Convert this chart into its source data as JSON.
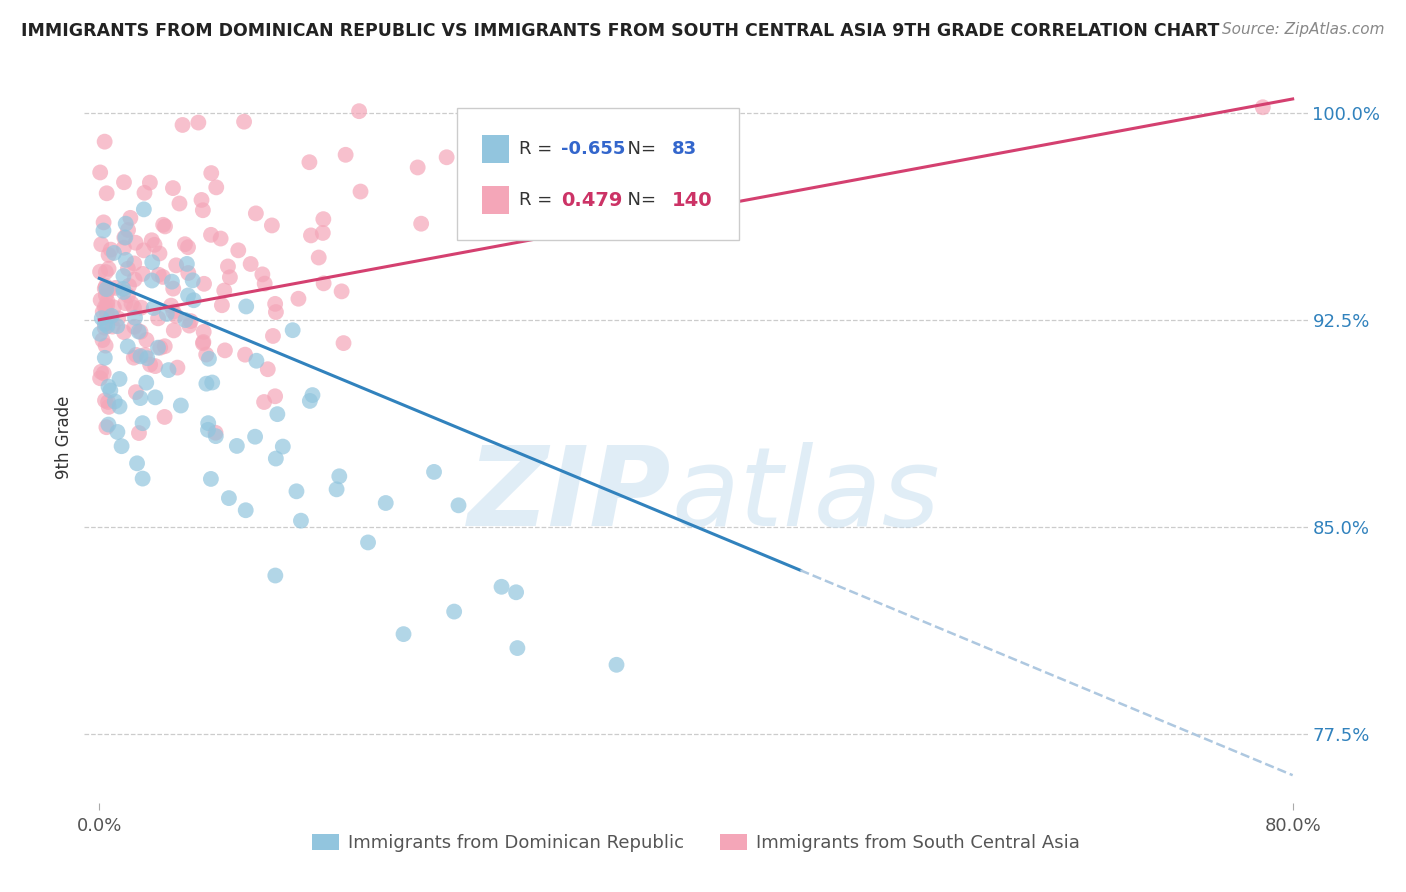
{
  "title": "IMMIGRANTS FROM DOMINICAN REPUBLIC VS IMMIGRANTS FROM SOUTH CENTRAL ASIA 9TH GRADE CORRELATION CHART",
  "source_text": "Source: ZipAtlas.com",
  "ylabel": "9th Grade",
  "blue_label": "Immigrants from Dominican Republic",
  "pink_label": "Immigrants from South Central Asia",
  "blue_R": -0.655,
  "blue_N": 83,
  "pink_R": 0.479,
  "pink_N": 140,
  "blue_color": "#92c5de",
  "pink_color": "#f4a6b8",
  "blue_line_color": "#3182bd",
  "pink_line_color": "#d44070",
  "blue_dash_color": "#aec8e0",
  "xlim_min": 0.0,
  "xlim_max": 80.0,
  "ylim_min": 75.0,
  "ylim_max": 101.5,
  "ytick_vals": [
    77.5,
    85.0,
    92.5,
    100.0
  ],
  "ytick_labels": [
    "77.5%",
    "85.0%",
    "92.5%",
    "100.0%"
  ],
  "xtick_vals": [
    0.0,
    80.0
  ],
  "xtick_labels": [
    "0.0%",
    "80.0%"
  ],
  "legend_R_blue_color": "#3366cc",
  "legend_R_pink_color": "#cc3366",
  "legend_N_blue_color": "#3366cc",
  "legend_N_pink_color": "#cc3366"
}
